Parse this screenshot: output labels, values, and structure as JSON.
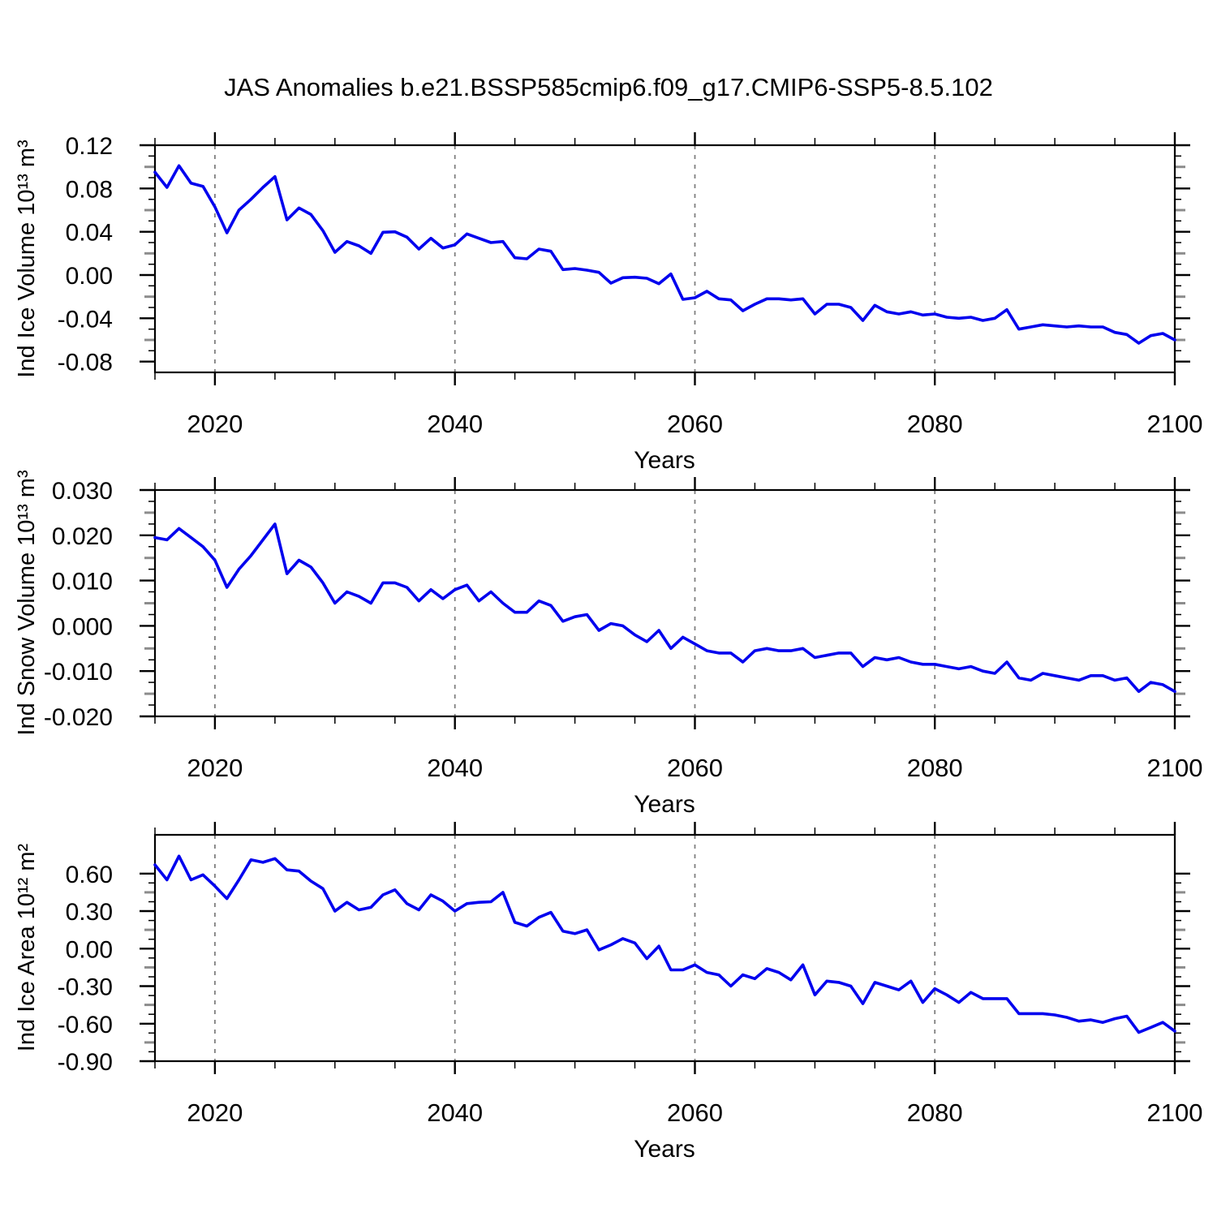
{
  "title": "JAS Anomalies b.e21.BSSP585cmip6.f09_g17.CMIP6-SSP5-8.5.102",
  "colors": {
    "line": "#0000ee",
    "grid": "#808080",
    "frame": "#000000",
    "mid_tick": "#8c8c8c"
  },
  "chart_data": [
    {
      "type": "line",
      "panel": "ice-volume",
      "ylabel": "Ind Ice Volume 10¹³ m³",
      "xlabel": "Years",
      "xlim": [
        2015,
        2100
      ],
      "ylim": [
        -0.09,
        0.12
      ],
      "x_major_ticks": [
        2020,
        2040,
        2060,
        2080,
        2100
      ],
      "x_major_labels": [
        "2020",
        "2040",
        "2060",
        "2080",
        "2100"
      ],
      "x_minor_step": 5,
      "y_major_ticks": [
        0.12,
        0.08,
        0.04,
        0.0,
        -0.04,
        -0.08
      ],
      "y_major_labels": [
        "0.12",
        "0.08",
        "0.04",
        "0.00",
        "-0.04",
        "-0.08"
      ],
      "y_minor_step": 0.01,
      "grid": "dashed-vertical-at-x-majors",
      "legend": "none",
      "x_start": 2015,
      "x_step": 1,
      "values": [
        0.095,
        0.081,
        0.101,
        0.085,
        0.082,
        0.063,
        0.039,
        0.06,
        0.07,
        0.081,
        0.091,
        0.051,
        0.062,
        0.056,
        0.041,
        0.021,
        0.031,
        0.027,
        0.02,
        0.0395,
        0.04,
        0.035,
        0.024,
        0.034,
        0.025,
        0.028,
        0.038,
        0.034,
        0.03,
        0.031,
        0.016,
        0.015,
        0.024,
        0.022,
        0.005,
        0.006,
        0.0045,
        0.0025,
        -0.0075,
        -0.0025,
        -0.002,
        -0.003,
        -0.008,
        0.001,
        -0.0225,
        -0.021,
        -0.015,
        -0.022,
        -0.023,
        -0.033,
        -0.027,
        -0.022,
        -0.022,
        -0.023,
        -0.022,
        -0.036,
        -0.027,
        -0.027,
        -0.03,
        -0.042,
        -0.028,
        -0.034,
        -0.036,
        -0.034,
        -0.037,
        -0.036,
        -0.039,
        -0.04,
        -0.039,
        -0.042,
        -0.04,
        -0.032,
        -0.05,
        -0.048,
        -0.046,
        -0.047,
        -0.048,
        -0.047,
        -0.048,
        -0.048,
        -0.053,
        -0.055,
        -0.063,
        -0.056,
        -0.054,
        -0.06
      ]
    },
    {
      "type": "line",
      "panel": "snow-volume",
      "ylabel": "Ind Snow Volume 10¹³ m³",
      "xlabel": "Years",
      "xlim": [
        2015,
        2100
      ],
      "ylim": [
        -0.02,
        0.03
      ],
      "x_major_ticks": [
        2020,
        2040,
        2060,
        2080,
        2100
      ],
      "x_major_labels": [
        "2020",
        "2040",
        "2060",
        "2080",
        "2100"
      ],
      "x_minor_step": 5,
      "y_major_ticks": [
        0.03,
        0.02,
        0.01,
        0.0,
        -0.01,
        -0.02
      ],
      "y_major_labels": [
        "0.030",
        "0.020",
        "0.010",
        "0.000",
        "-0.010",
        "-0.020"
      ],
      "y_minor_step": 0.0025,
      "grid": "dashed-vertical-at-x-majors",
      "legend": "none",
      "x_start": 2015,
      "x_step": 1,
      "values": [
        0.0195,
        0.019,
        0.0215,
        0.0195,
        0.0175,
        0.0145,
        0.0085,
        0.0125,
        0.0155,
        0.019,
        0.0225,
        0.0115,
        0.0145,
        0.013,
        0.0095,
        0.005,
        0.0075,
        0.0065,
        0.005,
        0.0095,
        0.0095,
        0.0085,
        0.0055,
        0.008,
        0.006,
        0.008,
        0.009,
        0.0055,
        0.0075,
        0.005,
        0.003,
        0.003,
        0.0055,
        0.0045,
        0.001,
        0.002,
        0.0025,
        -0.001,
        0.0005,
        0.0,
        -0.002,
        -0.0035,
        -0.001,
        -0.005,
        -0.0025,
        -0.004,
        -0.0055,
        -0.006,
        -0.006,
        -0.008,
        -0.0055,
        -0.005,
        -0.0055,
        -0.0055,
        -0.005,
        -0.007,
        -0.0065,
        -0.006,
        -0.006,
        -0.009,
        -0.007,
        -0.0075,
        -0.007,
        -0.008,
        -0.0085,
        -0.0085,
        -0.009,
        -0.0095,
        -0.009,
        -0.01,
        -0.0105,
        -0.008,
        -0.0115,
        -0.012,
        -0.0105,
        -0.011,
        -0.0115,
        -0.012,
        -0.011,
        -0.011,
        -0.012,
        -0.0115,
        -0.0145,
        -0.0125,
        -0.013,
        -0.0145
      ]
    },
    {
      "type": "line",
      "panel": "ice-area",
      "ylabel": "Ind Ice Area 10¹² m²",
      "xlabel": "Years",
      "xlim": [
        2015,
        2100
      ],
      "ylim": [
        -0.9,
        0.91
      ],
      "x_major_ticks": [
        2020,
        2040,
        2060,
        2080,
        2100
      ],
      "x_major_labels": [
        "2020",
        "2040",
        "2060",
        "2080",
        "2100"
      ],
      "x_minor_step": 5,
      "y_major_ticks": [
        0.6,
        0.3,
        0.0,
        -0.3,
        -0.6,
        -0.9
      ],
      "y_major_labels": [
        "0.60",
        "0.30",
        "0.00",
        "-0.30",
        "-0.60",
        "-0.90"
      ],
      "y_minor_step": 0.075,
      "grid": "dashed-vertical-at-x-majors",
      "legend": "none",
      "x_start": 2015,
      "x_step": 1,
      "values": [
        0.67,
        0.55,
        0.74,
        0.55,
        0.59,
        0.5,
        0.4,
        0.55,
        0.71,
        0.69,
        0.72,
        0.63,
        0.62,
        0.54,
        0.48,
        0.3,
        0.37,
        0.31,
        0.33,
        0.43,
        0.47,
        0.36,
        0.31,
        0.43,
        0.38,
        0.3,
        0.36,
        0.37,
        0.375,
        0.45,
        0.21,
        0.18,
        0.25,
        0.29,
        0.14,
        0.12,
        0.15,
        -0.01,
        0.03,
        0.08,
        0.045,
        -0.08,
        0.02,
        -0.17,
        -0.17,
        -0.13,
        -0.19,
        -0.21,
        -0.3,
        -0.21,
        -0.24,
        -0.16,
        -0.19,
        -0.25,
        -0.13,
        -0.37,
        -0.26,
        -0.27,
        -0.3,
        -0.44,
        -0.27,
        -0.3,
        -0.33,
        -0.26,
        -0.43,
        -0.32,
        -0.37,
        -0.43,
        -0.35,
        -0.4,
        -0.4,
        -0.4,
        -0.52,
        -0.52,
        -0.52,
        -0.53,
        -0.55,
        -0.58,
        -0.57,
        -0.59,
        -0.56,
        -0.54,
        -0.67,
        -0.63,
        -0.59,
        -0.66
      ]
    }
  ]
}
